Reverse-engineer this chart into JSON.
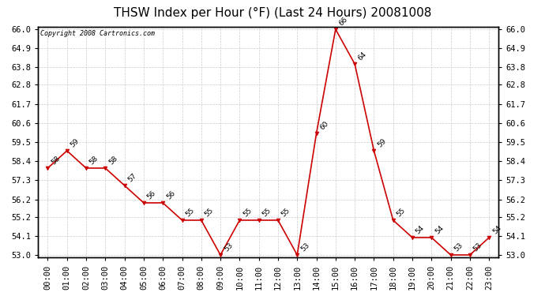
{
  "title": "THSW Index per Hour (°F) (Last 24 Hours) 20081008",
  "copyright": "Copyright 2008 Cartronics.com",
  "hours": [
    "00:00",
    "01:00",
    "02:00",
    "03:00",
    "04:00",
    "05:00",
    "06:00",
    "07:00",
    "08:00",
    "09:00",
    "10:00",
    "11:00",
    "12:00",
    "13:00",
    "14:00",
    "15:00",
    "16:00",
    "17:00",
    "18:00",
    "19:00",
    "20:00",
    "21:00",
    "22:00",
    "23:00"
  ],
  "values": [
    58,
    59,
    58,
    58,
    57,
    56,
    56,
    55,
    55,
    53,
    55,
    55,
    55,
    53,
    60,
    66,
    64,
    59,
    55,
    54,
    54,
    53,
    53,
    54
  ],
  "line_color": "#cc0000",
  "marker_color": "#cc0000",
  "bg_color": "#ffffff",
  "grid_color": "#cccccc",
  "title_fontsize": 11,
  "copyright_fontsize": 6,
  "label_fontsize": 6.5,
  "tick_fontsize": 7.5,
  "ylim_min": 53.0,
  "ylim_max": 66.0,
  "yticks": [
    53.0,
    54.1,
    55.2,
    56.2,
    57.3,
    58.4,
    59.5,
    60.6,
    61.7,
    62.8,
    63.8,
    64.9,
    66.0
  ]
}
